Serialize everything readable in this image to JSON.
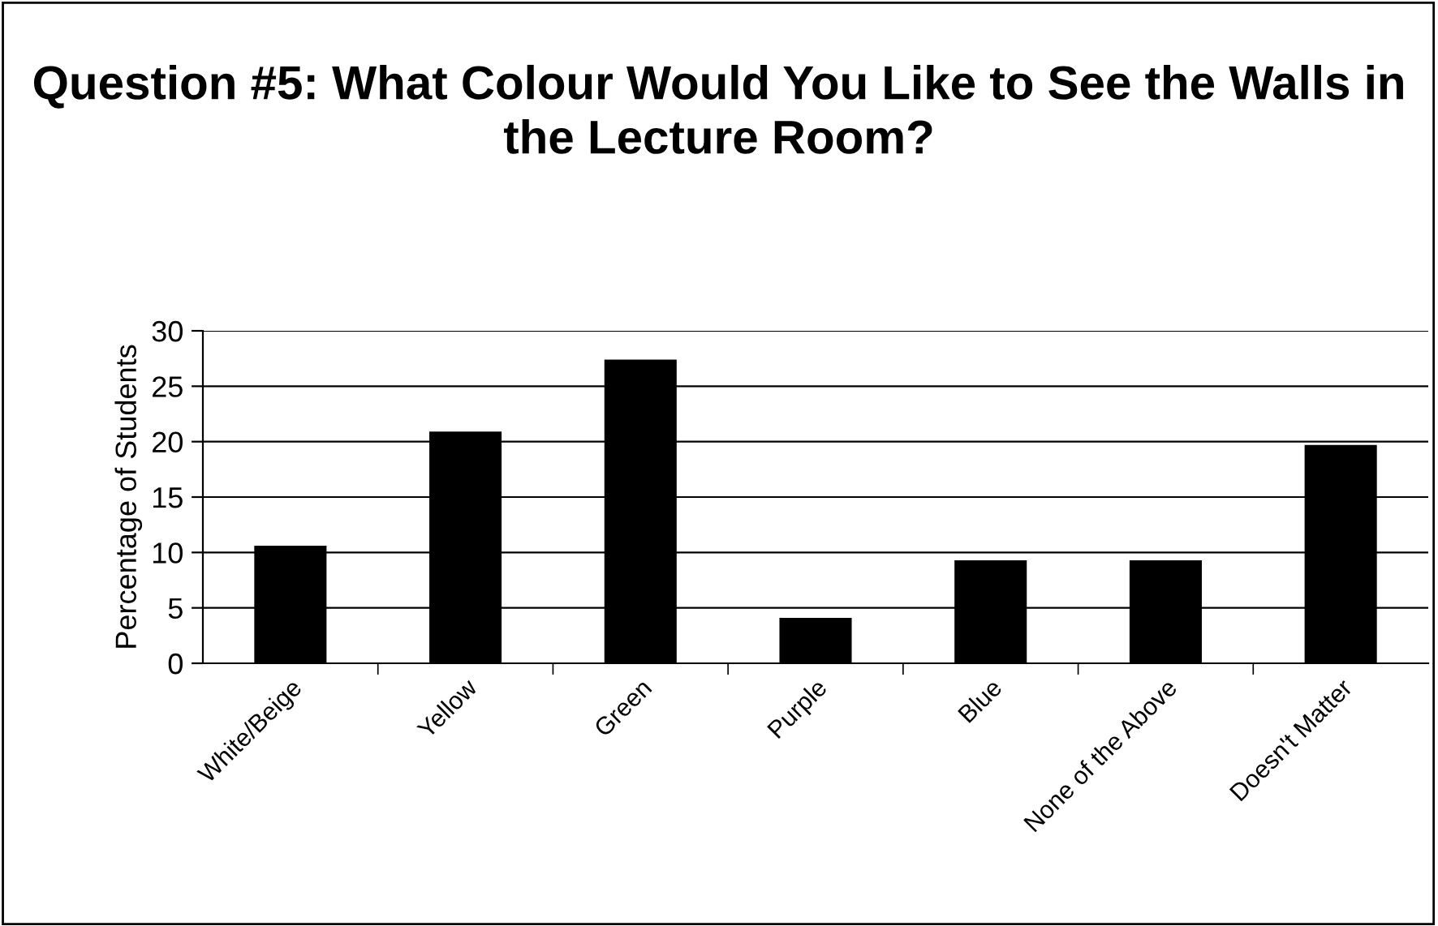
{
  "chart_data": {
    "type": "bar",
    "title": "Question #5: What Colour Would You Like to See the Walls in the Lecture Room?",
    "ylabel": "Percentage of Students",
    "categories": [
      "White/Beige",
      "Yellow",
      "Green",
      "Purple",
      "Blue",
      "None of the Above",
      "Doesn't Matter"
    ],
    "values": [
      10.5,
      20.8,
      27.3,
      4.0,
      9.2,
      9.2,
      19.6
    ],
    "color": "#000000",
    "ylim": [
      0,
      30
    ],
    "yticks": [
      0,
      5,
      10,
      15,
      20,
      25,
      30
    ],
    "grid": "y"
  }
}
